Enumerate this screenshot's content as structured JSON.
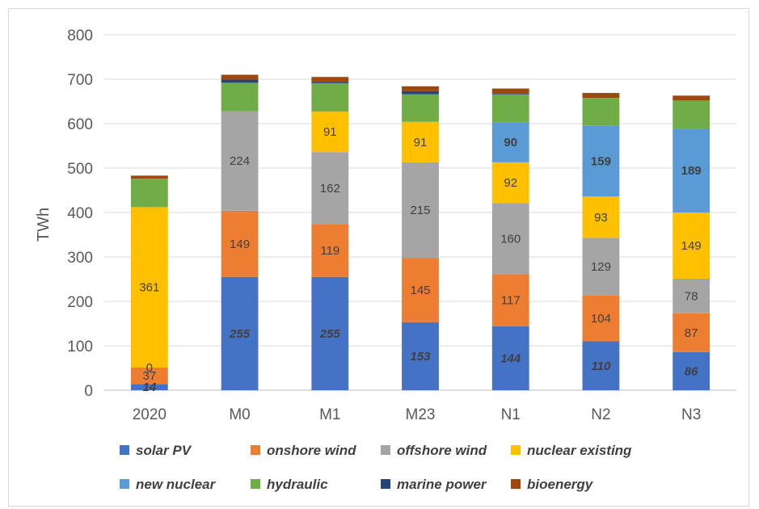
{
  "chart_data": {
    "type": "bar",
    "stacked": true,
    "title": "",
    "xlabel": "",
    "ylabel": "TWh",
    "ylim": [
      0,
      800
    ],
    "yticks": [
      0,
      100,
      200,
      300,
      400,
      500,
      600,
      700,
      800
    ],
    "grid": true,
    "legend_position": "bottom",
    "categories": [
      "2020",
      "M0",
      "M1",
      "M23",
      "N1",
      "N2",
      "N3"
    ],
    "series": [
      {
        "name": "solar PV",
        "color": "#4472C4",
        "values": [
          14,
          255,
          255,
          153,
          144,
          110,
          86
        ],
        "labels": [
          "14",
          "255",
          "255",
          "153",
          "144",
          "110",
          "86"
        ],
        "label_style": "bold-italic",
        "label_color": "#404040"
      },
      {
        "name": "onshore wind",
        "color": "#ED7D31",
        "values": [
          37,
          149,
          119,
          145,
          117,
          104,
          87
        ],
        "labels": [
          "37",
          "149",
          "119",
          "145",
          "117",
          "104",
          "87"
        ],
        "label_style": "normal",
        "label_color": "#404040"
      },
      {
        "name": "offshore wind",
        "color": "#A5A5A5",
        "values": [
          0,
          224,
          162,
          215,
          160,
          129,
          78
        ],
        "labels": [
          "0",
          "224",
          "162",
          "215",
          "160",
          "129",
          "78"
        ],
        "label_style": "normal",
        "label_color": "#404040"
      },
      {
        "name": "nuclear existing",
        "color": "#FFC000",
        "values": [
          361,
          0,
          91,
          91,
          92,
          93,
          149
        ],
        "labels": [
          "361",
          "",
          "91",
          "91",
          "92",
          "93",
          "149"
        ],
        "label_style": "normal",
        "label_color": "#404040"
      },
      {
        "name": "new nuclear",
        "color": "#5B9BD5",
        "values": [
          0,
          0,
          0,
          0,
          90,
          159,
          189
        ],
        "labels": [
          "",
          "",
          "",
          "",
          "90",
          "159",
          "189"
        ],
        "label_style": "bold",
        "label_color": "#404040"
      },
      {
        "name": "hydraulic",
        "color": "#70AD47",
        "values": [
          64,
          64,
          64,
          62,
          63,
          63,
          63
        ],
        "labels": [
          "",
          "",
          "",
          "",
          "",
          "",
          ""
        ]
      },
      {
        "name": "marine power",
        "color": "#264478",
        "values": [
          0,
          7,
          3,
          7,
          2,
          0,
          0
        ],
        "labels": [
          "",
          "",
          "",
          "",
          "",
          "",
          ""
        ]
      },
      {
        "name": "bioenergy",
        "color": "#9E480E",
        "values": [
          7,
          11,
          11,
          11,
          11,
          11,
          11
        ],
        "labels": [
          "",
          "",
          "",
          "",
          "",
          "",
          ""
        ]
      }
    ]
  }
}
